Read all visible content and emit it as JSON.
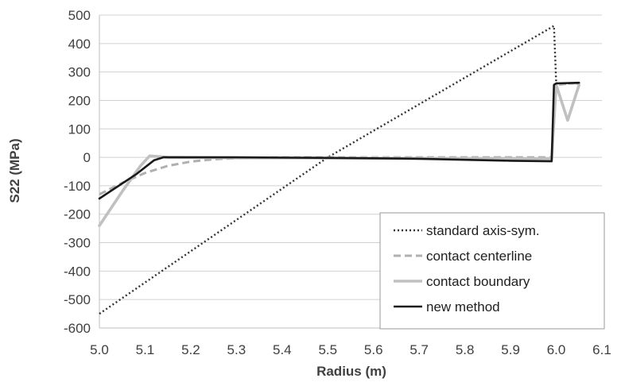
{
  "chart_data": {
    "type": "line",
    "xlabel": "Radius (m)",
    "ylabel": "S22 (MPa)",
    "xlim": [
      5.0,
      6.1
    ],
    "ylim": [
      -600,
      500
    ],
    "x_ticks": [
      "5.0",
      "5.1",
      "5.2",
      "5.3",
      "5.4",
      "5.5",
      "5.6",
      "5.7",
      "5.8",
      "5.9",
      "6.0",
      "6.1"
    ],
    "y_ticks": [
      "500",
      "400",
      "300",
      "200",
      "100",
      "0",
      "-100",
      "-200",
      "-300",
      "-400",
      "-500",
      "-600"
    ],
    "grid": "horizontal",
    "legend_position": "bottom-right",
    "series": [
      {
        "name": "standard axis-sym.",
        "color": "#333333",
        "style": "dotted",
        "points": [
          [
            5.0,
            -550
          ],
          [
            5.5,
            0
          ],
          [
            5.995,
            462
          ],
          [
            6.0,
            260
          ],
          [
            6.05,
            260
          ]
        ]
      },
      {
        "name": "contact centerline",
        "color": "#b0b0b0",
        "style": "dashed",
        "points": [
          [
            5.0,
            -130
          ],
          [
            5.05,
            -90
          ],
          [
            5.1,
            -55
          ],
          [
            5.15,
            -30
          ],
          [
            5.2,
            -15
          ],
          [
            5.25,
            -7
          ],
          [
            5.3,
            -3
          ],
          [
            5.4,
            0
          ],
          [
            5.6,
            0
          ],
          [
            5.8,
            0
          ],
          [
            5.99,
            0
          ],
          [
            6.0,
            255
          ],
          [
            6.05,
            262
          ]
        ]
      },
      {
        "name": "contact boundary",
        "color": "#c0c0c0",
        "style": "solid",
        "points": [
          [
            5.0,
            -240
          ],
          [
            5.05,
            -120
          ],
          [
            5.09,
            -30
          ],
          [
            5.11,
            5
          ],
          [
            5.15,
            0
          ],
          [
            5.3,
            -2
          ],
          [
            5.6,
            -3
          ],
          [
            5.99,
            -5
          ],
          [
            6.0,
            255
          ],
          [
            6.025,
            130
          ],
          [
            6.05,
            255
          ]
        ]
      },
      {
        "name": "new method",
        "color": "#1a1a1a",
        "style": "solid",
        "points": [
          [
            5.0,
            -145
          ],
          [
            5.08,
            -60
          ],
          [
            5.12,
            -10
          ],
          [
            5.14,
            0
          ],
          [
            5.3,
            0
          ],
          [
            5.5,
            -2
          ],
          [
            5.7,
            -5
          ],
          [
            5.9,
            -12
          ],
          [
            5.99,
            -14
          ],
          [
            5.995,
            255
          ],
          [
            6.0,
            260
          ],
          [
            6.05,
            262
          ]
        ]
      }
    ]
  }
}
